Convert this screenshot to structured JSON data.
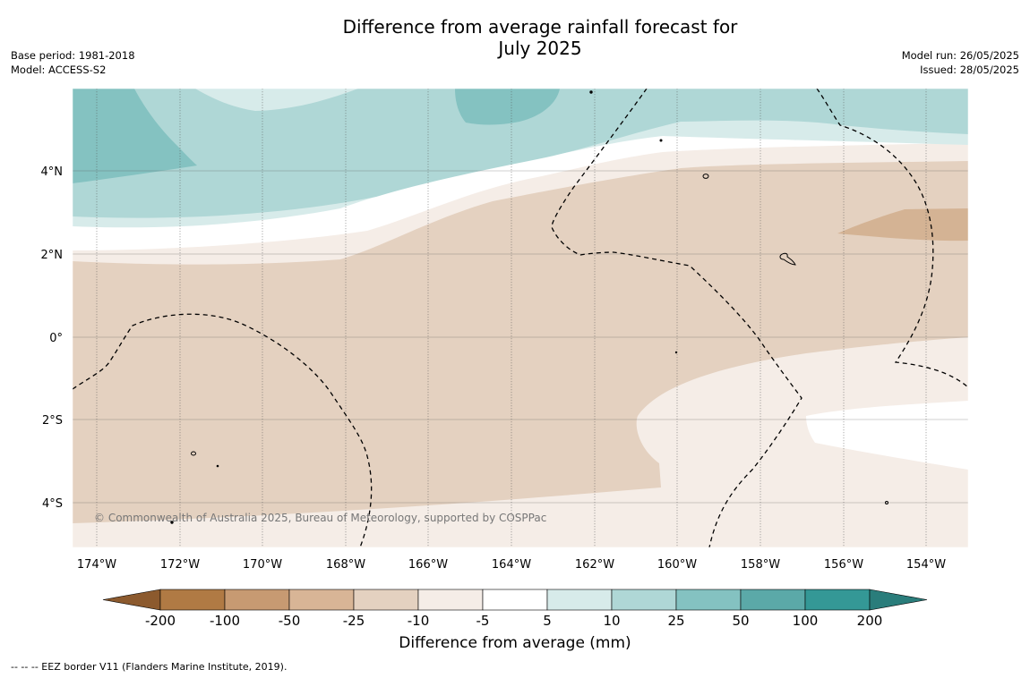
{
  "title_line1": "Difference from average rainfall forecast for",
  "title_line2": "July 2025",
  "base_period": "Base period: 1981-2018",
  "model": "Model: ACCESS-S2",
  "model_run": "Model run: 26/05/2025",
  "issued": "Issued: 28/05/2025",
  "copyright": "© Commonwealth of Australia 2025, Bureau of Meteorology, supported by COSPPac",
  "footnote": "-- -- -- EEZ border V11 (Flanders Marine Institute, 2019).",
  "map": {
    "lat_labels": [
      "4°N",
      "2°N",
      "0°",
      "2°S",
      "4°S"
    ],
    "lon_labels": [
      "174°W",
      "172°W",
      "170°W",
      "168°W",
      "166°W",
      "164°W",
      "162°W",
      "160°W",
      "158°W",
      "156°W",
      "154°W"
    ]
  },
  "colorbar": {
    "title": "Difference from average (mm)",
    "tick_labels": [
      "-200",
      "-100",
      "-50",
      "-25",
      "-10",
      "-5",
      "5",
      "10",
      "25",
      "50",
      "100",
      "200"
    ],
    "colors": [
      "#8c5a2e",
      "#b07a44",
      "#c79a72",
      "#d8b596",
      "#e4d1c0",
      "#f5ede7",
      "#ffffff",
      "#d7ebea",
      "#afd7d6",
      "#84c2c1",
      "#5ba9a8",
      "#349896",
      "#2a7d7b"
    ]
  }
}
